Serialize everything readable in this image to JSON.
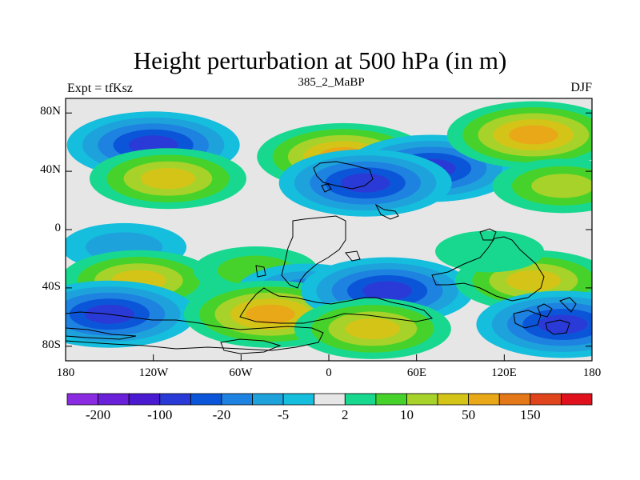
{
  "title": "Height perturbation at 500 hPa (in m)",
  "left_string": "Expt = tfKsz",
  "center_string": "385_2_MaBP",
  "right_string": "DJF",
  "map": {
    "projection": "cylindrical equidistant",
    "lon_range": [
      -180,
      180
    ],
    "lat_range": [
      -90,
      90
    ],
    "y_ticks": [
      {
        "value": 80,
        "label": "80N"
      },
      {
        "value": 40,
        "label": "40N"
      },
      {
        "value": 0,
        "label": "0"
      },
      {
        "value": -40,
        "label": "40S"
      },
      {
        "value": -80,
        "label": "80S"
      }
    ],
    "x_ticks": [
      {
        "value": -180,
        "label": "180"
      },
      {
        "value": -120,
        "label": "120W"
      },
      {
        "value": -60,
        "label": "60W"
      },
      {
        "value": 0,
        "label": "0"
      },
      {
        "value": 60,
        "label": "60E"
      },
      {
        "value": 120,
        "label": "120E"
      },
      {
        "value": 180,
        "label": "180"
      }
    ]
  },
  "colorbar": {
    "colors": [
      "#8a2be2",
      "#6a1fd8",
      "#4a1ad0",
      "#2a3ad6",
      "#0b56d8",
      "#1e82e0",
      "#1ea2dc",
      "#14bedc",
      "#e6e6e6",
      "#18d890",
      "#46d22a",
      "#a6d22a",
      "#d4c418",
      "#e8a818",
      "#e47818",
      "#e0441c",
      "#e0101c"
    ],
    "labels": [
      "-200",
      "-100",
      "-20",
      "-5",
      "2",
      "10",
      "50",
      "150"
    ],
    "label_boundaries": [
      1,
      3,
      5,
      7,
      9,
      11,
      13,
      15
    ]
  },
  "chart_data": {
    "type": "heatmap",
    "title": "Height perturbation at 500 hPa (in m)",
    "subtitle": "385_2_MaBP",
    "annotations": [
      "Expt = tfKsz",
      "DJF"
    ],
    "x_range": [
      -180,
      180
    ],
    "y_range": [
      -90,
      90
    ],
    "anomalies": [
      {
        "lon": -120,
        "lat": 58,
        "value": -40
      },
      {
        "lon": -110,
        "lat": 35,
        "value": 30
      },
      {
        "lon": 10,
        "lat": 50,
        "value": 35
      },
      {
        "lon": 70,
        "lat": 42,
        "value": -40
      },
      {
        "lon": 25,
        "lat": 32,
        "value": -40
      },
      {
        "lon": 140,
        "lat": 65,
        "value": 40
      },
      {
        "lon": 160,
        "lat": 30,
        "value": 20
      },
      {
        "lon": -140,
        "lat": -12,
        "value": -8
      },
      {
        "lon": -130,
        "lat": -35,
        "value": 30
      },
      {
        "lon": -150,
        "lat": -58,
        "value": -40
      },
      {
        "lon": -50,
        "lat": -28,
        "value": 8
      },
      {
        "lon": -15,
        "lat": -42,
        "value": -15
      },
      {
        "lon": -40,
        "lat": -58,
        "value": 35
      },
      {
        "lon": 40,
        "lat": -42,
        "value": -35
      },
      {
        "lon": 30,
        "lat": -68,
        "value": 30
      },
      {
        "lon": 140,
        "lat": -35,
        "value": 25
      },
      {
        "lon": 160,
        "lat": -65,
        "value": -40
      },
      {
        "lon": 110,
        "lat": -15,
        "value": 5
      }
    ]
  }
}
